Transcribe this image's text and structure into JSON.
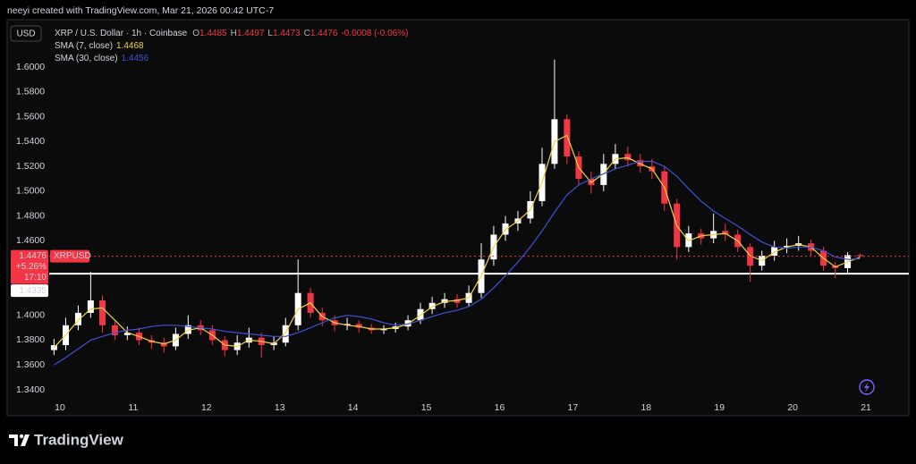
{
  "chart_data": {
    "type": "candlestick",
    "watermark": "neeyi created with TradingView.com, Mar 21, 2026 00:42 UTC-7",
    "currency": "USD",
    "symbol": "XRP / U.S. Dollar · 1h · Coinbase",
    "ohlc_legend": [
      {
        "key": "O",
        "value": "1.4485"
      },
      {
        "key": "H",
        "value": "1.4497"
      },
      {
        "key": "L",
        "value": "1.4473"
      },
      {
        "key": "C",
        "value": "1.4476"
      }
    ],
    "change": "-0.0008 (-0.06%)",
    "current": {
      "symbol": "XRPUSD",
      "price": "1.4476",
      "change": "+5.26%",
      "countdown": "17:10"
    },
    "horizontal_line": 1.4335,
    "brand": "TradingView",
    "up_color": "#ffffff",
    "down_color": "#f23645",
    "grid": false,
    "xlim": [
      9.854,
      21.585
    ],
    "xticks": [
      10,
      11,
      12,
      13,
      14,
      15,
      16,
      17,
      18,
      19,
      20,
      21
    ],
    "ylim": [
      1.3335,
      1.6382
    ],
    "yticks": [
      {
        "value": 1.34,
        "label": "1.3400"
      },
      {
        "value": 1.36,
        "label": "1.3600"
      },
      {
        "value": 1.38,
        "label": "1.3800"
      },
      {
        "value": 1.4,
        "label": "1.4000"
      },
      {
        "value": 1.46,
        "label": "1.4600"
      },
      {
        "value": 1.48,
        "label": "1.4800"
      },
      {
        "value": 1.5,
        "label": "1.5000"
      },
      {
        "value": 1.52,
        "label": "1.5200"
      },
      {
        "value": 1.54,
        "label": "1.5400"
      },
      {
        "value": 1.56,
        "label": "1.5600"
      },
      {
        "value": 1.58,
        "label": "1.5800"
      },
      {
        "value": 1.6,
        "label": "1.6000"
      }
    ],
    "x": [
      9.92,
      10.08,
      10.25,
      10.42,
      10.58,
      10.75,
      10.92,
      11.08,
      11.25,
      11.42,
      11.58,
      11.75,
      11.92,
      12.08,
      12.25,
      12.42,
      12.58,
      12.75,
      12.92,
      13.08,
      13.25,
      13.42,
      13.58,
      13.75,
      13.92,
      14.08,
      14.25,
      14.42,
      14.58,
      14.75,
      14.92,
      15.08,
      15.25,
      15.42,
      15.58,
      15.75,
      15.92,
      16.08,
      16.25,
      16.42,
      16.58,
      16.75,
      16.92,
      17.08,
      17.25,
      17.42,
      17.58,
      17.75,
      17.92,
      18.08,
      18.25,
      18.42,
      18.58,
      18.75,
      18.92,
      19.08,
      19.25,
      19.42,
      19.58,
      19.75,
      19.92,
      20.08,
      20.25,
      20.42,
      20.58,
      20.75,
      20.92
    ],
    "open": [
      1.372,
      1.376,
      1.392,
      1.402,
      1.412,
      1.392,
      1.384,
      1.386,
      1.38,
      1.378,
      1.375,
      1.385,
      1.392,
      1.388,
      1.38,
      1.372,
      1.378,
      1.382,
      1.376,
      1.378,
      1.392,
      1.418,
      1.402,
      1.396,
      1.392,
      1.393,
      1.39,
      1.388,
      1.389,
      1.391,
      1.396,
      1.405,
      1.41,
      1.413,
      1.41,
      1.418,
      1.445,
      1.465,
      1.474,
      1.478,
      1.492,
      1.522,
      1.558,
      1.528,
      1.51,
      1.505,
      1.522,
      1.53,
      1.525,
      1.52,
      1.516,
      1.49,
      1.455,
      1.466,
      1.462,
      1.468,
      1.465,
      1.455,
      1.44,
      1.448,
      1.455,
      1.456,
      1.458,
      1.452,
      1.44,
      1.438,
      1.4485
    ],
    "high": [
      1.381,
      1.398,
      1.408,
      1.435,
      1.416,
      1.395,
      1.391,
      1.39,
      1.384,
      1.382,
      1.39,
      1.4,
      1.396,
      1.392,
      1.383,
      1.384,
      1.39,
      1.386,
      1.383,
      1.398,
      1.445,
      1.422,
      1.406,
      1.4,
      1.398,
      1.396,
      1.393,
      1.392,
      1.394,
      1.4,
      1.41,
      1.415,
      1.418,
      1.417,
      1.424,
      1.458,
      1.472,
      1.48,
      1.484,
      1.5,
      1.535,
      1.606,
      1.562,
      1.532,
      1.516,
      1.53,
      1.538,
      1.536,
      1.53,
      1.526,
      1.52,
      1.494,
      1.472,
      1.47,
      1.482,
      1.474,
      1.469,
      1.458,
      1.452,
      1.46,
      1.462,
      1.464,
      1.461,
      1.455,
      1.443,
      1.451,
      1.4497
    ],
    "low": [
      1.368,
      1.372,
      1.388,
      1.398,
      1.386,
      1.38,
      1.38,
      1.376,
      1.373,
      1.37,
      1.372,
      1.381,
      1.384,
      1.376,
      1.367,
      1.368,
      1.374,
      1.366,
      1.372,
      1.375,
      1.388,
      1.398,
      1.391,
      1.387,
      1.388,
      1.386,
      1.385,
      1.385,
      1.386,
      1.388,
      1.393,
      1.401,
      1.406,
      1.406,
      1.407,
      1.414,
      1.44,
      1.46,
      1.468,
      1.474,
      1.488,
      1.518,
      1.522,
      1.505,
      1.498,
      1.5,
      1.518,
      1.52,
      1.515,
      1.51,
      1.484,
      1.445,
      1.451,
      1.457,
      1.458,
      1.46,
      1.451,
      1.427,
      1.436,
      1.444,
      1.45,
      1.452,
      1.448,
      1.436,
      1.43,
      1.434,
      1.4473
    ],
    "close": [
      1.376,
      1.392,
      1.402,
      1.412,
      1.392,
      1.384,
      1.386,
      1.38,
      1.378,
      1.375,
      1.385,
      1.392,
      1.388,
      1.38,
      1.372,
      1.378,
      1.382,
      1.376,
      1.378,
      1.392,
      1.418,
      1.402,
      1.396,
      1.392,
      1.393,
      1.39,
      1.388,
      1.389,
      1.391,
      1.396,
      1.405,
      1.41,
      1.413,
      1.41,
      1.418,
      1.445,
      1.465,
      1.474,
      1.478,
      1.492,
      1.522,
      1.558,
      1.528,
      1.51,
      1.505,
      1.522,
      1.53,
      1.525,
      1.52,
      1.516,
      1.49,
      1.455,
      1.466,
      1.462,
      1.468,
      1.465,
      1.455,
      1.44,
      1.448,
      1.455,
      1.456,
      1.458,
      1.452,
      1.44,
      1.438,
      1.4485,
      1.4476
    ],
    "series": [
      {
        "name": "SMA (7, close)",
        "last": "1.4468",
        "color": "#f5d33f",
        "values": [
          1.374,
          1.384,
          1.396,
          1.405,
          1.406,
          1.396,
          1.386,
          1.383,
          1.379,
          1.377,
          1.38,
          1.388,
          1.39,
          1.384,
          1.376,
          1.375,
          1.38,
          1.379,
          1.377,
          1.386,
          1.405,
          1.41,
          1.399,
          1.394,
          1.392,
          1.391,
          1.389,
          1.389,
          1.39,
          1.393,
          1.4,
          1.407,
          1.411,
          1.412,
          1.414,
          1.432,
          1.455,
          1.469,
          1.476,
          1.485,
          1.507,
          1.54,
          1.545,
          1.519,
          1.507,
          1.514,
          1.526,
          1.527,
          1.522,
          1.518,
          1.503,
          1.472,
          1.46,
          1.464,
          1.465,
          1.466,
          1.46,
          1.448,
          1.444,
          1.451,
          1.455,
          1.457,
          1.455,
          1.446,
          1.439,
          1.443,
          1.4468
        ]
      },
      {
        "name": "SMA (30, close)",
        "last": "1.4456",
        "color": "#3f51d8",
        "values": [
          1.36,
          1.366,
          1.373,
          1.38,
          1.383,
          1.386,
          1.388,
          1.389,
          1.391,
          1.392,
          1.392,
          1.391,
          1.39,
          1.389,
          1.387,
          1.386,
          1.385,
          1.384,
          1.383,
          1.383,
          1.386,
          1.39,
          1.394,
          1.398,
          1.4,
          1.399,
          1.397,
          1.394,
          1.392,
          1.393,
          1.396,
          1.399,
          1.402,
          1.404,
          1.407,
          1.413,
          1.422,
          1.432,
          1.443,
          1.455,
          1.468,
          1.483,
          1.497,
          1.505,
          1.51,
          1.514,
          1.518,
          1.521,
          1.524,
          1.524,
          1.52,
          1.512,
          1.502,
          1.492,
          1.484,
          1.478,
          1.472,
          1.465,
          1.459,
          1.455,
          1.454,
          1.455,
          1.455,
          1.452,
          1.447,
          1.445,
          1.4456
        ]
      }
    ]
  }
}
